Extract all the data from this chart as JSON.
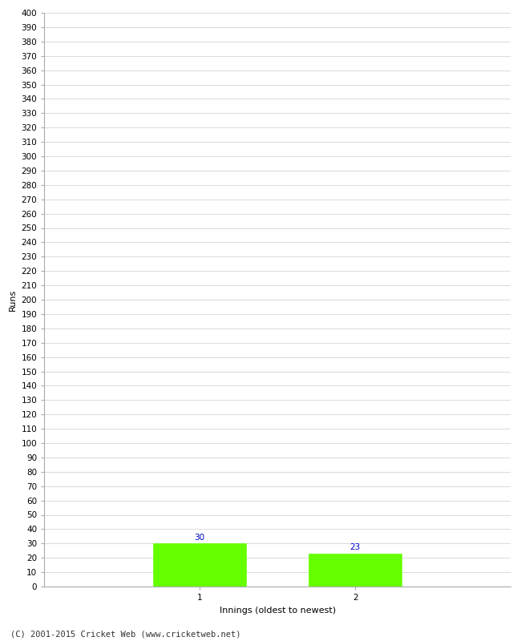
{
  "categories": [
    "1",
    "2"
  ],
  "values": [
    30,
    23
  ],
  "bar_color": "#66ff00",
  "bar_edge_color": "#66ff00",
  "ylabel": "Runs",
  "xlabel": "Innings (oldest to newest)",
  "ylim": [
    0,
    400
  ],
  "ytick_step": 10,
  "background_color": "#ffffff",
  "grid_color": "#cccccc",
  "value_label_color": "#0000cc",
  "value_label_fontsize": 7.5,
  "axis_label_fontsize": 8,
  "tick_fontsize": 7.5,
  "footer_text": "(C) 2001-2015 Cricket Web (www.cricketweb.net)",
  "footer_fontsize": 7.5,
  "bar_width": 0.6
}
